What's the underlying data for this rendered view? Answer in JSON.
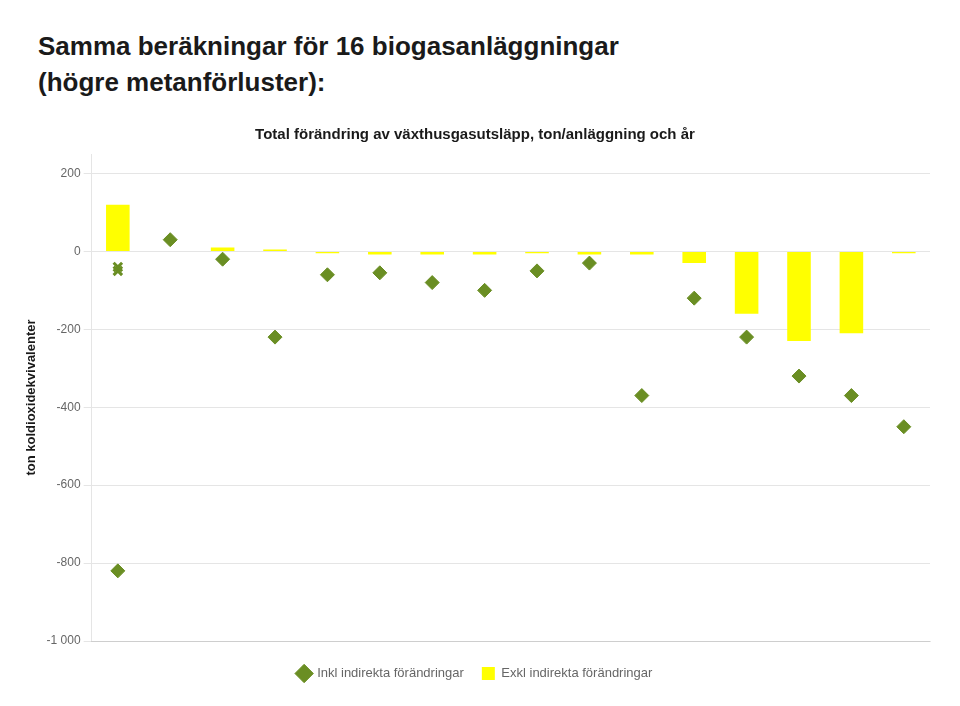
{
  "chart_data": {
    "type": "bar",
    "title": "Total förändring av växthusgasutsläpp, ton/anläggning och år",
    "annotations": [
      "Samma beräkningar för 16 biogasanläggningar",
      "(högre metanförluster):"
    ],
    "ylabel": "ton koldioxidekvivalenter",
    "categories": [
      null,
      null,
      null,
      null,
      null,
      null,
      null,
      null,
      null,
      null,
      null,
      null,
      null,
      null,
      null,
      null
    ],
    "series": [
      {
        "name": "Exkl indirekta förändringar",
        "type": "bar",
        "color": "#ffff00",
        "values": [
          120,
          0,
          10,
          5,
          -5,
          -8,
          -8,
          -8,
          -5,
          -8,
          -8,
          -30,
          -160,
          -230,
          -210,
          -5
        ]
      },
      {
        "name": "Inkl indirekta förändringar",
        "type": "scatter",
        "marker": "diamond",
        "color": "#6a8e23",
        "values": [
          -820,
          30,
          -20,
          -220,
          -60,
          -55,
          -80,
          -100,
          -50,
          -30,
          -370,
          -120,
          -220,
          -320,
          -370,
          -450
        ]
      },
      {
        "type": "scatter",
        "marker": "x",
        "color": "#6a8e23",
        "values": [
          -40,
          null,
          null,
          null,
          null,
          null,
          null,
          null,
          null,
          null,
          null,
          null,
          null,
          null,
          null,
          null
        ]
      },
      {
        "type": "scatter",
        "marker": "x",
        "color": "#6a8e23",
        "values": [
          -50,
          null,
          null,
          null,
          null,
          null,
          null,
          null,
          null,
          null,
          null,
          null,
          null,
          null,
          null,
          null
        ]
      }
    ],
    "ylim": [
      -1000,
      250
    ],
    "yticks": [
      {
        "value": -1000,
        "label": "-1 000"
      },
      -800,
      -600,
      -400,
      -200,
      0,
      200
    ],
    "grid": true,
    "legend": "bottom",
    "tick_labels": "y"
  }
}
